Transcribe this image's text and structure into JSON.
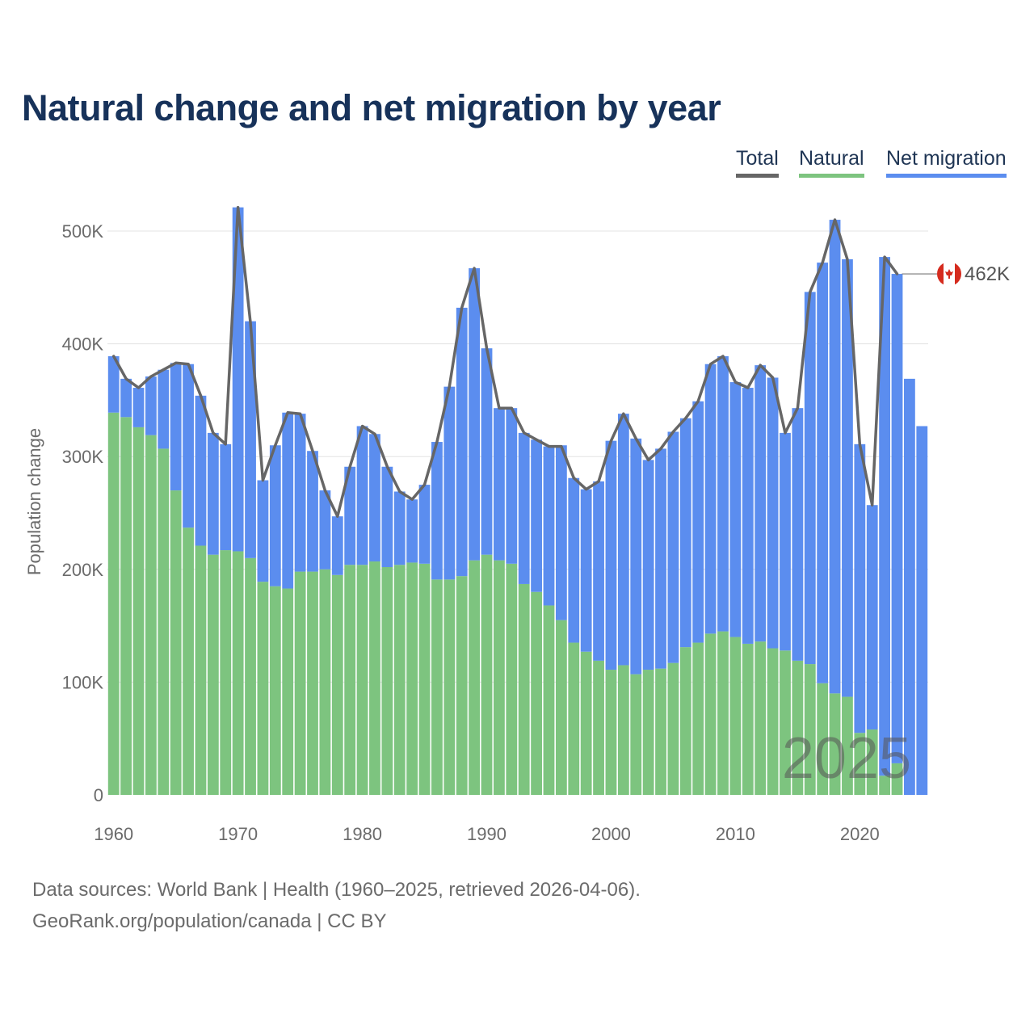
{
  "title": "Natural change and net migration by year",
  "legend": {
    "total": "Total",
    "natural": "Natural",
    "migration": "Net migration"
  },
  "colors": {
    "natural": "#7dc47f",
    "migration": "#5b8def",
    "total": "#666666",
    "title": "#17325a"
  },
  "chart_data": {
    "type": "bar",
    "stacked": true,
    "ylabel": "Population change",
    "ylim": [
      0,
      520000
    ],
    "yticks": [
      0,
      100000,
      200000,
      300000,
      400000,
      500000
    ],
    "ytick_labels": [
      "0",
      "100K",
      "200K",
      "300K",
      "400K",
      "500K"
    ],
    "xticks": [
      1960,
      1970,
      1980,
      1990,
      2000,
      2010,
      2020
    ],
    "x": [
      1960,
      1961,
      1962,
      1963,
      1964,
      1965,
      1966,
      1967,
      1968,
      1969,
      1970,
      1971,
      1972,
      1973,
      1974,
      1975,
      1976,
      1977,
      1978,
      1979,
      1980,
      1981,
      1982,
      1983,
      1984,
      1985,
      1986,
      1987,
      1988,
      1989,
      1990,
      1991,
      1992,
      1993,
      1994,
      1995,
      1996,
      1997,
      1998,
      1999,
      2000,
      2001,
      2002,
      2003,
      2004,
      2005,
      2006,
      2007,
      2008,
      2009,
      2010,
      2011,
      2012,
      2013,
      2014,
      2015,
      2016,
      2017,
      2018,
      2019,
      2020,
      2021,
      2022,
      2023,
      2024,
      2025
    ],
    "series": [
      {
        "name": "Natural",
        "values": [
          339000,
          335000,
          326000,
          319000,
          307000,
          270000,
          237000,
          221000,
          213000,
          217000,
          216000,
          210000,
          189000,
          185000,
          183000,
          198000,
          198000,
          200000,
          195000,
          204000,
          204000,
          207000,
          202000,
          204000,
          206000,
          205000,
          191000,
          191000,
          194000,
          208000,
          213000,
          208000,
          205000,
          187000,
          180000,
          168000,
          155000,
          135000,
          127000,
          119000,
          111000,
          115000,
          107000,
          111000,
          112000,
          117000,
          131000,
          135000,
          143000,
          145000,
          140000,
          134000,
          136000,
          130000,
          128000,
          119000,
          116000,
          99000,
          90000,
          87000,
          55000,
          58000,
          17000,
          28000,
          0,
          0
        ]
      },
      {
        "name": "Net migration",
        "values": [
          50000,
          34000,
          35000,
          52000,
          70000,
          113000,
          145000,
          133000,
          108000,
          94000,
          305000,
          210000,
          90000,
          125000,
          156000,
          140000,
          107000,
          70000,
          52000,
          87000,
          123000,
          113000,
          89000,
          65000,
          56000,
          70000,
          122000,
          171000,
          238000,
          259000,
          183000,
          135000,
          138000,
          134000,
          135000,
          141000,
          155000,
          146000,
          144000,
          159000,
          203000,
          223000,
          209000,
          186000,
          195000,
          205000,
          203000,
          214000,
          239000,
          244000,
          226000,
          227000,
          245000,
          240000,
          193000,
          224000,
          330000,
          373000,
          420000,
          388000,
          256000,
          199000,
          460000,
          434000,
          369000,
          327000
        ]
      },
      {
        "name": "Total",
        "values": [
          389000,
          369000,
          361000,
          371000,
          377000,
          383000,
          382000,
          354000,
          321000,
          311000,
          521000,
          419000,
          279000,
          310000,
          339000,
          338000,
          305000,
          270000,
          247000,
          291000,
          327000,
          320000,
          291000,
          269000,
          262000,
          275000,
          313000,
          362000,
          432000,
          467000,
          396000,
          343000,
          343000,
          321000,
          315000,
          309000,
          309000,
          281000,
          271000,
          278000,
          314000,
          338000,
          316000,
          297000,
          307000,
          322000,
          334000,
          349000,
          382000,
          389000,
          366000,
          361000,
          381000,
          370000,
          321000,
          343000,
          446000,
          472000,
          510000,
          475000,
          311000,
          257000,
          477000,
          462000,
          null,
          null
        ]
      }
    ],
    "end_label": "462K",
    "watermark_year": "2025"
  },
  "footer": {
    "source": "Data sources: World Bank | Health (1960–2025, retrieved 2026-04-06).",
    "credit": "GeoRank.org/population/canada | CC BY"
  }
}
